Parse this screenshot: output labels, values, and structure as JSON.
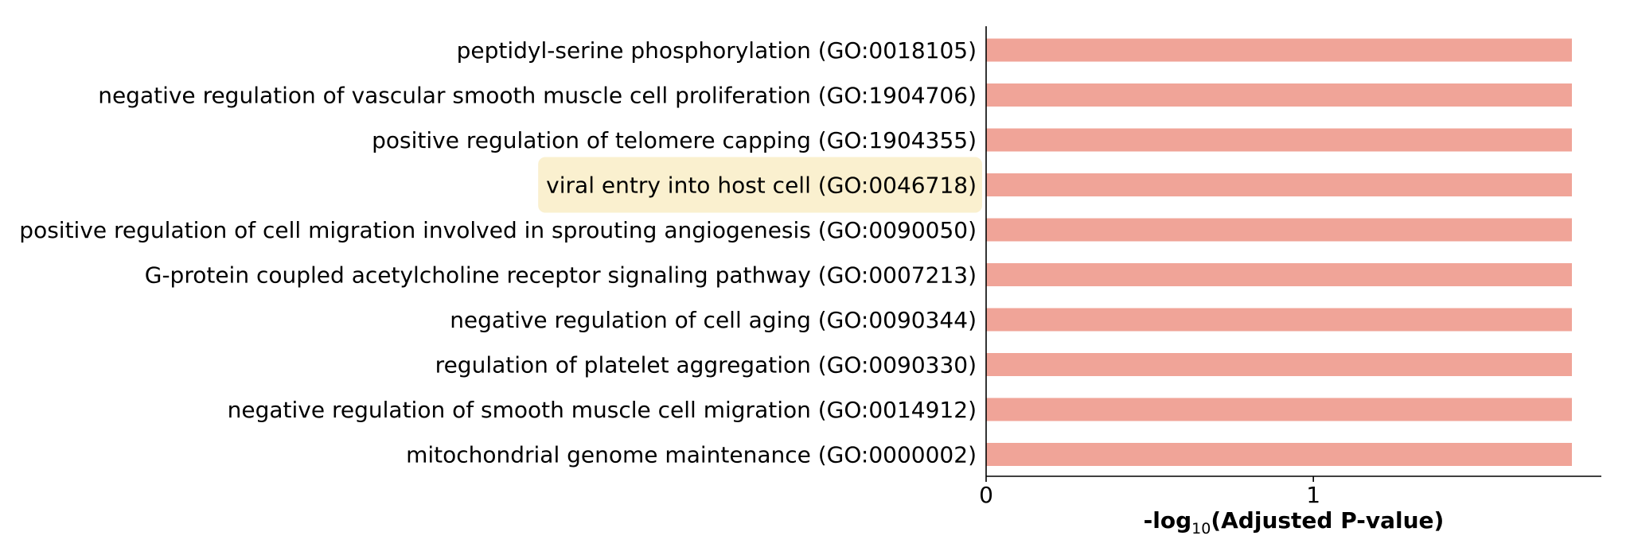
{
  "chart_data": {
    "type": "bar",
    "orientation": "horizontal",
    "categories": [
      "peptidyl-serine phosphorylation (GO:0018105)",
      "negative regulation of vascular smooth muscle cell proliferation (GO:1904706)",
      "positive regulation of telomere capping (GO:1904355)",
      "viral entry into host cell (GO:0046718)",
      "positive regulation of cell migration involved in sprouting angiogenesis (GO:0090050)",
      "G-protein coupled acetylcholine receptor signaling pathway (GO:0007213)",
      "negative regulation of cell aging (GO:0090344)",
      "regulation of platelet aggregation (GO:0090330)",
      "negative regulation of smooth muscle cell migration (GO:0014912)",
      "mitochondrial genome maintenance (GO:0000002)"
    ],
    "values": [
      1.79,
      1.79,
      1.79,
      1.79,
      1.79,
      1.79,
      1.79,
      1.79,
      1.79,
      1.79
    ],
    "highlighted_category": "viral entry into host cell (GO:0046718)",
    "xlabel_prefix": "-log",
    "xlabel_subscript": "10",
    "xlabel_suffix": "(Adjusted P-value)",
    "ylabel": "",
    "xlim": [
      0,
      1.88
    ],
    "xticks": [
      0,
      1
    ],
    "xtick_labels": [
      "0",
      "1"
    ],
    "grid": false,
    "bar_color": "#f0a498",
    "highlight_color": "#faf0cf",
    "axis_color": "#000000"
  }
}
